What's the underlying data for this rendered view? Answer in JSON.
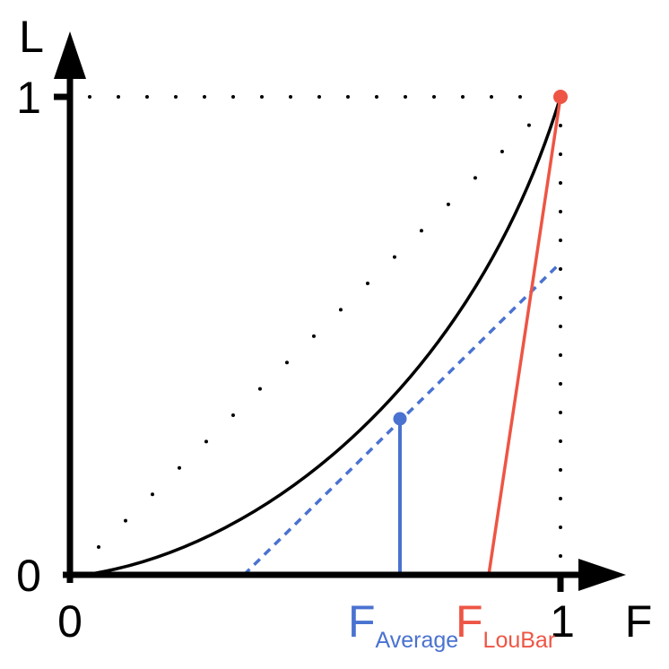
{
  "axes": {
    "y_label": "L",
    "x_label": "F",
    "y_ticks": [
      "1",
      "0"
    ],
    "x_ticks": [
      "0",
      "1"
    ]
  },
  "markers": {
    "average": {
      "symbol": "F",
      "subscript": "Average"
    },
    "loubar": {
      "symbol": "F",
      "subscript": "LouBar"
    }
  }
}
